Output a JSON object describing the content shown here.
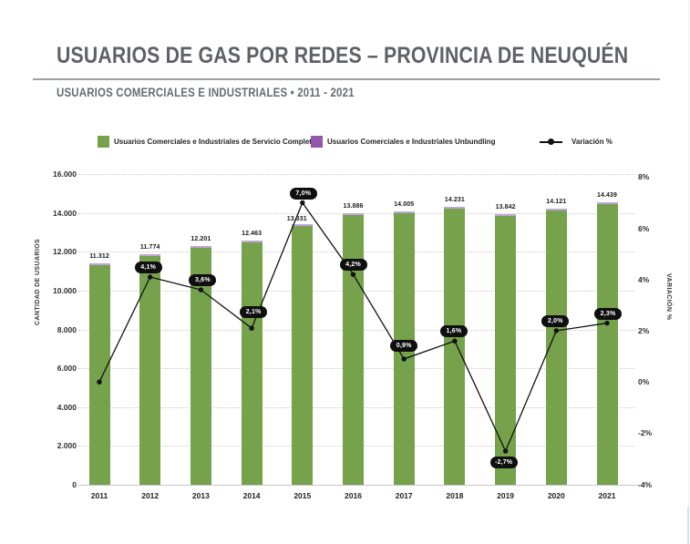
{
  "header": {
    "title": "USUARIOS DE GAS POR REDES – PROVINCIA DE NEUQUÉN",
    "subtitle": "USUARIOS COMERCIALES E INDUSTRIALES • 2011 - 2021"
  },
  "legend": {
    "items": [
      {
        "label": "Usuarios Comerciales e Industriales de Servicio Completo",
        "swatch": "square",
        "color": "#76A24C"
      },
      {
        "label": "Usuarios Comerciales e Industriales Unbundling",
        "swatch": "square",
        "color": "#9257AD"
      },
      {
        "label": "Variación %",
        "swatch": "line-dot",
        "color": "#111111"
      }
    ]
  },
  "chart_data": {
    "type": "bar",
    "title": "USUARIOS DE GAS POR REDES – PROVINCIA DE NEUQUÉN",
    "subtitle": "USUARIOS COMERCIALES E INDUSTRIALES • 2011 - 2021",
    "categories": [
      "2011",
      "2012",
      "2013",
      "2014",
      "2015",
      "2016",
      "2017",
      "2018",
      "2019",
      "2020",
      "2021"
    ],
    "series": [
      {
        "name": "Usuarios Comerciales e Industriales de Servicio Completo",
        "type": "bar",
        "color": "#76A24C",
        "values": [
          11312,
          11774,
          12201,
          12463,
          13331,
          13886,
          14005,
          14231,
          13842,
          14121,
          14439
        ],
        "value_labels": [
          "11.312",
          "11.774",
          "12.201",
          "12.463",
          "13.331",
          "13.886",
          "14.005",
          "14.231",
          "13.842",
          "14.121",
          "14.439"
        ]
      },
      {
        "name": "Usuarios Comerciales e Industriales Unbundling",
        "type": "bar",
        "color": "#BFA4DA",
        "values_visible": false,
        "note": "rendered as a thin purple cap on top of each green bar; numeric values not labeled in the image"
      },
      {
        "name": "Variación %",
        "type": "line",
        "color": "#111111",
        "values": [
          0.0,
          4.1,
          3.6,
          2.1,
          7.0,
          4.2,
          0.9,
          1.6,
          -2.7,
          2.0,
          2.3
        ],
        "point_labels": [
          "",
          "4,1%",
          "3,6%",
          "2,1%",
          "7,0%",
          "4,2%",
          "0,9%",
          "1,6%",
          "-2,7%",
          "2,0%",
          "2,3%"
        ]
      }
    ],
    "left_axis": {
      "label": "CANTIDAD DE USUARIOS",
      "min": 0,
      "max": 16000,
      "step": 2000,
      "tick_labels": [
        "0",
        "2.000",
        "4.000",
        "6.000",
        "8.000",
        "10.000",
        "12.000",
        "14.000",
        "16.000"
      ]
    },
    "right_axis": {
      "label": "VARIACIÓN %",
      "min": -4,
      "max": 8,
      "step": 2,
      "tick_labels": [
        "-4%",
        "-2%",
        "0%",
        "2%",
        "4%",
        "6%",
        "8%"
      ]
    },
    "grid": "horizontal dotted",
    "legend_position": "top"
  }
}
